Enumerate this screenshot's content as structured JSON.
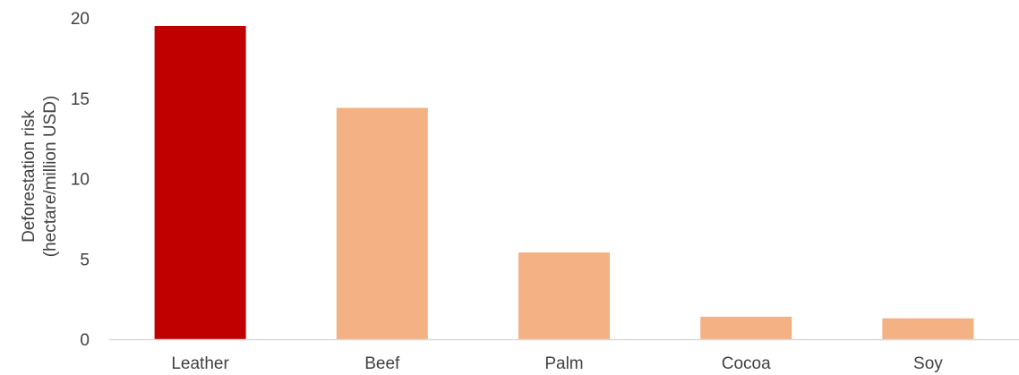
{
  "chart_data": {
    "type": "bar",
    "title": "",
    "xlabel": "",
    "ylabel_lines": [
      "Deforestation risk",
      "(hectare/million USD)"
    ],
    "categories": [
      "Leather",
      "Beef",
      "Palm",
      "Cocoa",
      "Soy"
    ],
    "values": [
      19.5,
      14.4,
      5.4,
      1.4,
      1.3
    ],
    "bar_colors": [
      "#c00000",
      "#f4b183",
      "#f4b183",
      "#f4b183",
      "#f4b183"
    ],
    "ylim": [
      0,
      20
    ],
    "y_ticks": [
      "0",
      "5",
      "10",
      "15",
      "20"
    ],
    "grid": false,
    "legend": "none",
    "axis_color": "#d9d9d9",
    "text_color": "#404040"
  }
}
